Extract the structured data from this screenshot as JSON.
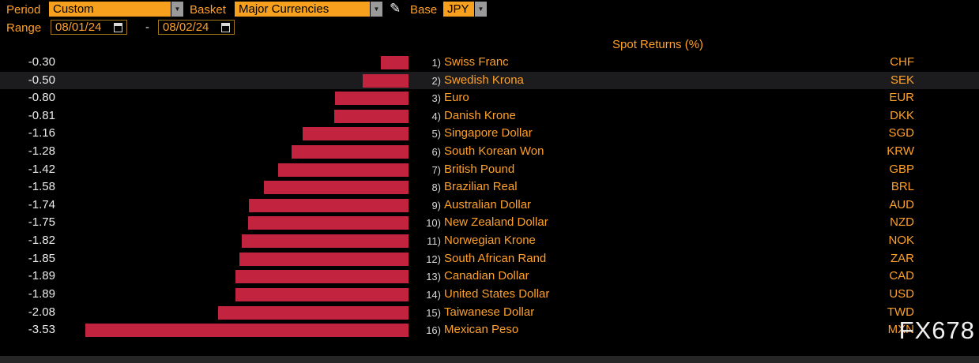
{
  "toolbar": {
    "period_label": "Period",
    "period_value": "Custom",
    "basket_label": "Basket",
    "basket_value": "Major Currencies",
    "base_label": "Base",
    "base_value": "JPY",
    "range_label": "Range",
    "range_start": "08/01/24",
    "range_separator": "-",
    "range_end": "08/02/24"
  },
  "title": "Spot Returns (%)",
  "watermark": "FX678",
  "colors": {
    "background": "#000000",
    "amber": "#ffa028",
    "bar": "#c2233e",
    "highlight_row": "#1c1c1f",
    "value_text": "#ececec",
    "dropdown_bg": "#f6a01e"
  },
  "chart_data": {
    "type": "bar",
    "orientation": "horizontal",
    "title": "Spot Returns (%)",
    "xlim": [
      -3.6,
      0
    ],
    "grid": false,
    "legend": "none",
    "bar_color": "#c2233e",
    "rows": [
      {
        "rank": "1)",
        "name": "Swiss Franc",
        "code": "CHF",
        "value": -0.3,
        "label": "-0.30",
        "highlighted": false
      },
      {
        "rank": "2)",
        "name": "Swedish Krona",
        "code": "SEK",
        "value": -0.5,
        "label": "-0.50",
        "highlighted": true
      },
      {
        "rank": "3)",
        "name": "Euro",
        "code": "EUR",
        "value": -0.8,
        "label": "-0.80",
        "highlighted": false
      },
      {
        "rank": "4)",
        "name": "Danish Krone",
        "code": "DKK",
        "value": -0.81,
        "label": "-0.81",
        "highlighted": false
      },
      {
        "rank": "5)",
        "name": "Singapore Dollar",
        "code": "SGD",
        "value": -1.16,
        "label": "-1.16",
        "highlighted": false
      },
      {
        "rank": "6)",
        "name": "South Korean Won",
        "code": "KRW",
        "value": -1.28,
        "label": "-1.28",
        "highlighted": false
      },
      {
        "rank": "7)",
        "name": "British Pound",
        "code": "GBP",
        "value": -1.42,
        "label": "-1.42",
        "highlighted": false
      },
      {
        "rank": "8)",
        "name": "Brazilian Real",
        "code": "BRL",
        "value": -1.58,
        "label": "-1.58",
        "highlighted": false
      },
      {
        "rank": "9)",
        "name": "Australian Dollar",
        "code": "AUD",
        "value": -1.74,
        "label": "-1.74",
        "highlighted": false
      },
      {
        "rank": "10)",
        "name": "New Zealand Dollar",
        "code": "NZD",
        "value": -1.75,
        "label": "-1.75",
        "highlighted": false
      },
      {
        "rank": "11)",
        "name": "Norwegian Krone",
        "code": "NOK",
        "value": -1.82,
        "label": "-1.82",
        "highlighted": false
      },
      {
        "rank": "12)",
        "name": "South African Rand",
        "code": "ZAR",
        "value": -1.85,
        "label": "-1.85",
        "highlighted": false
      },
      {
        "rank": "13)",
        "name": "Canadian Dollar",
        "code": "CAD",
        "value": -1.89,
        "label": "-1.89",
        "highlighted": false
      },
      {
        "rank": "14)",
        "name": "United States Dollar",
        "code": "USD",
        "value": -1.89,
        "label": "-1.89",
        "highlighted": false
      },
      {
        "rank": "15)",
        "name": "Taiwanese Dollar",
        "code": "TWD",
        "value": -2.08,
        "label": "-2.08",
        "highlighted": false
      },
      {
        "rank": "16)",
        "name": "Mexican Peso",
        "code": "MXN",
        "value": -3.53,
        "label": "-3.53",
        "highlighted": false
      }
    ]
  }
}
